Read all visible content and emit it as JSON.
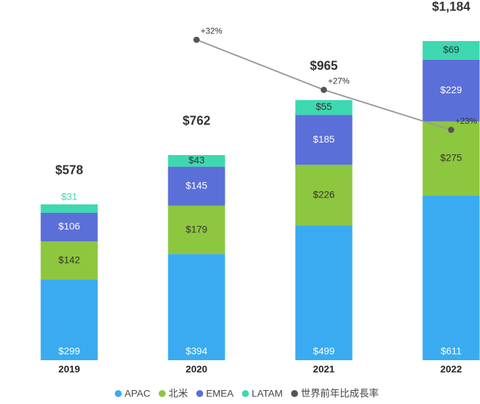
{
  "chart_data": {
    "type": "bar",
    "stacked": true,
    "categories": [
      "2019",
      "2020",
      "2021",
      "2022"
    ],
    "series": [
      {
        "name": "APAC",
        "color": "#3aabf0",
        "values": [
          299,
          394,
          499,
          611
        ],
        "value_labels": [
          "$299",
          "$394",
          "$499",
          "$611"
        ]
      },
      {
        "name": "北米",
        "color": "#8dc63f",
        "values": [
          142,
          179,
          226,
          275
        ],
        "value_labels": [
          "$142",
          "$179",
          "$226",
          "$275"
        ]
      },
      {
        "name": "EMEA",
        "color": "#5b6fd8",
        "values": [
          106,
          145,
          185,
          229
        ],
        "value_labels": [
          "$106",
          "$145",
          "$185",
          "$229"
        ]
      },
      {
        "name": "LATAM",
        "color": "#3ed8b0",
        "values": [
          31,
          43,
          55,
          69
        ],
        "value_labels": [
          "$31",
          "$43",
          "$55",
          "$69"
        ]
      },
      {
        "name": "世界前年比成長率",
        "color": "#555555",
        "type": "line",
        "axis": "y2",
        "values": [
          null,
          32,
          27,
          23
        ],
        "value_labels": [
          null,
          "+32%",
          "+27%",
          "+23%"
        ]
      }
    ],
    "totals": [
      578,
      762,
      965,
      1184
    ],
    "total_labels": [
      "$578",
      "$762",
      "$965",
      "$1,184"
    ],
    "ylim": [
      0,
      1300
    ],
    "y2lim": [
      0,
      35
    ],
    "legend": "bottom"
  }
}
